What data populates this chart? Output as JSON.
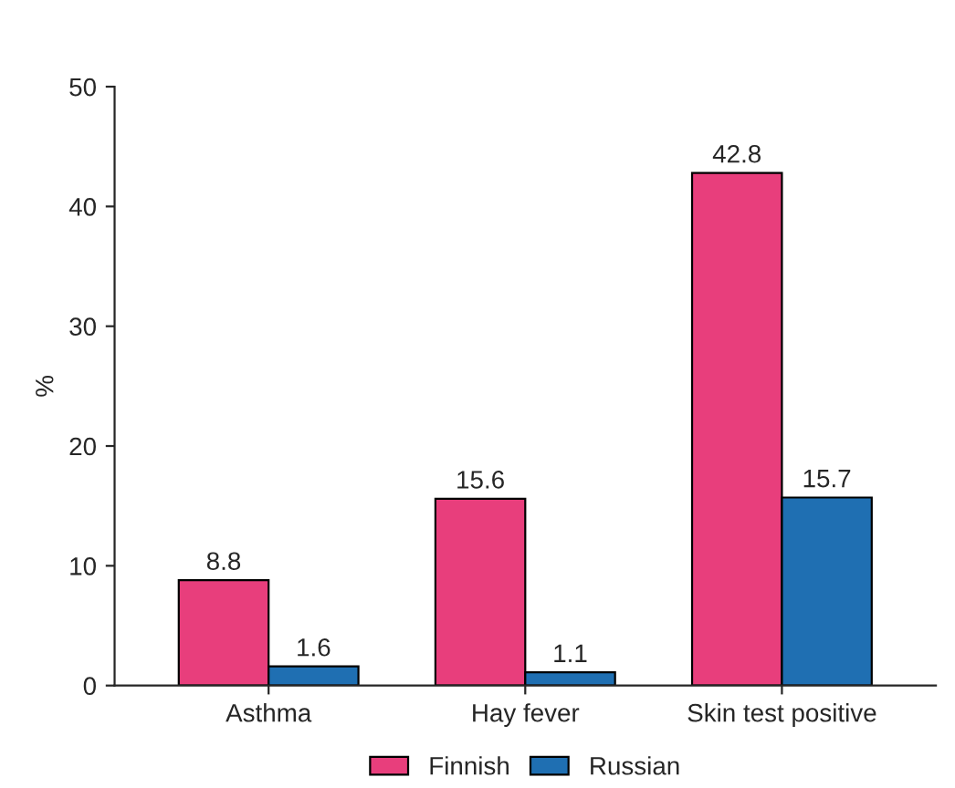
{
  "chart_data": {
    "type": "bar",
    "ylabel": "%",
    "categories": [
      "Asthma",
      "Hay fever",
      "Skin test positive"
    ],
    "series": [
      {
        "name": "Finnish",
        "color": "#e83e7c",
        "values": [
          8.8,
          15.6,
          42.8
        ]
      },
      {
        "name": "Russian",
        "color": "#1f6fb2",
        "values": [
          1.6,
          1.1,
          15.7
        ]
      }
    ],
    "ylim": [
      0,
      50
    ],
    "yticks": [
      0,
      10,
      20,
      30,
      40,
      50
    ],
    "data_labels": true,
    "legend": "bottom",
    "grid": false
  }
}
